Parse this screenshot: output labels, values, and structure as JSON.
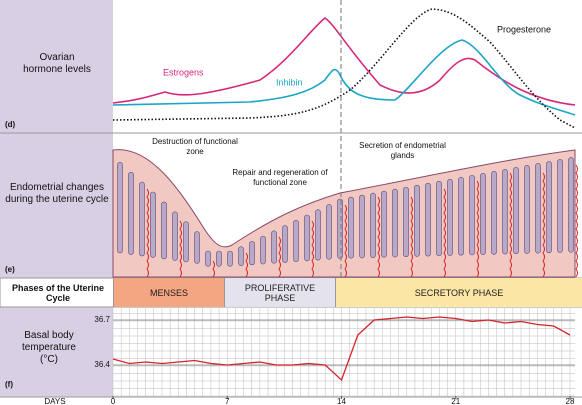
{
  "panel_d": {
    "label": "Ovarian hormone levels",
    "tag": "(d)",
    "estrogens": "Estrogens",
    "inhibin": "Inhibin",
    "progesterone": "Progesterone"
  },
  "panel_e": {
    "label": "Endometrial changes during the uterine cycle",
    "tag": "(e)",
    "annotations": [
      "Destruction of functional zone",
      "Repair and regeneration of functional zone",
      "Secretion of endometrial glands"
    ]
  },
  "phases": {
    "label": "Phases of the Uterine Cycle",
    "items": [
      "MENSES",
      "PROLIFERATIVE PHASE",
      "SECRETORY PHASE"
    ]
  },
  "chart_data": {
    "type": "line",
    "y_label": "Basal body temperature (°C)",
    "tag": "(f)",
    "x_label": "DAYS",
    "x": [
      0,
      1,
      2,
      3,
      4,
      5,
      6,
      7,
      8,
      9,
      10,
      11,
      12,
      13,
      14,
      15,
      16,
      17,
      18,
      19,
      20,
      21,
      22,
      23,
      24,
      25,
      26,
      27,
      28
    ],
    "xlim": [
      0,
      28
    ],
    "xticks": [
      0,
      7,
      14,
      21,
      28
    ],
    "ylim": [
      36.2,
      36.75
    ],
    "yticks": [
      36.4,
      36.7
    ],
    "series": [
      {
        "color": "#d6232b",
        "values": [
          36.44,
          36.41,
          36.42,
          36.41,
          36.42,
          36.43,
          36.41,
          36.4,
          36.41,
          36.42,
          36.4,
          36.4,
          36.41,
          36.4,
          36.3,
          36.6,
          36.7,
          36.71,
          36.72,
          36.71,
          36.72,
          36.71,
          36.69,
          36.7,
          36.68,
          36.69,
          36.67,
          36.66,
          36.6
        ]
      }
    ]
  }
}
